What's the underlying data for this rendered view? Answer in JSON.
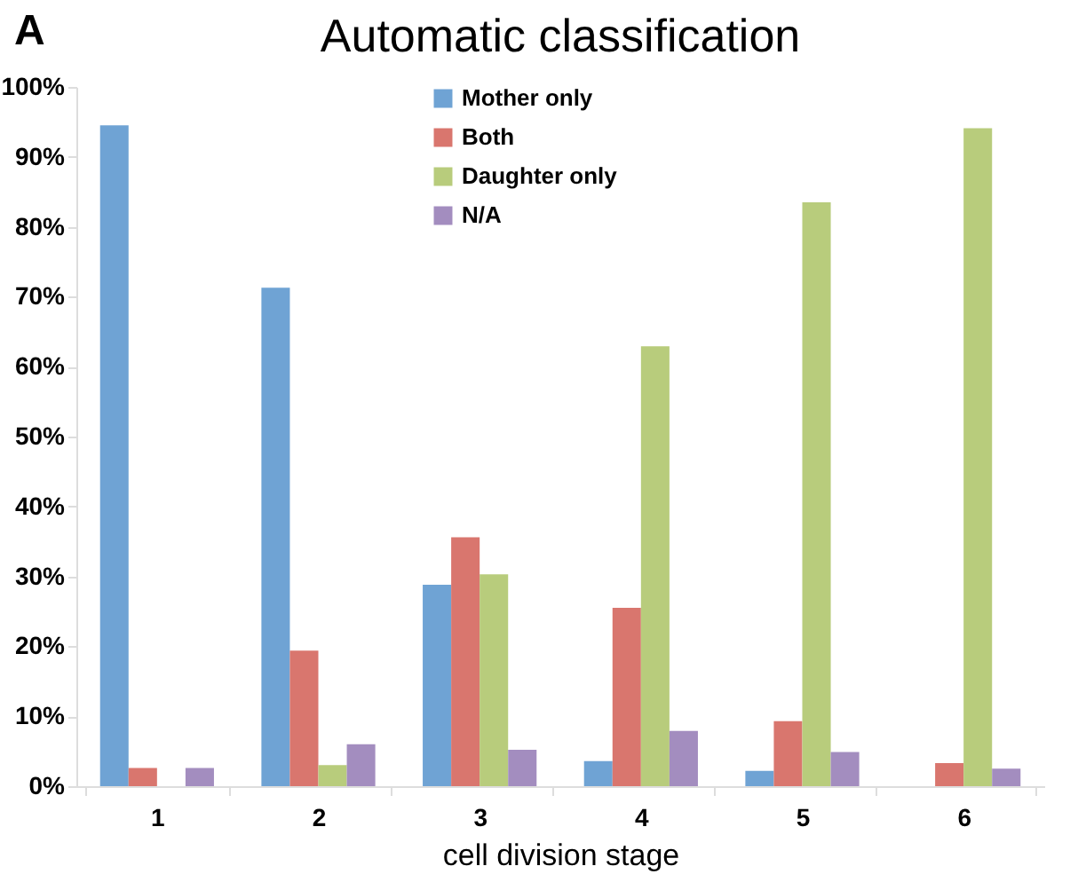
{
  "chart_data": {
    "type": "bar",
    "title": "Automatic classification",
    "xlabel": "cell division stage",
    "annotations": [
      "A"
    ],
    "categories": [
      "1",
      "2",
      "3",
      "4",
      "5",
      "6"
    ],
    "series": [
      {
        "name": "Mother only",
        "color": "#6fa3d4",
        "values": [
          94.5,
          71.3,
          28.8,
          3.6,
          2.2,
          0
        ]
      },
      {
        "name": "Both",
        "color": "#d9766e",
        "values": [
          2.6,
          19.4,
          35.6,
          25.5,
          9.3,
          3.3
        ]
      },
      {
        "name": "Daughter only",
        "color": "#b8cc7c",
        "values": [
          0,
          3.0,
          30.3,
          62.9,
          83.5,
          94.1
        ]
      },
      {
        "name": "N/A",
        "color": "#a38dbf",
        "values": [
          2.6,
          6.0,
          5.2,
          7.9,
          4.9,
          2.5
        ]
      }
    ],
    "ylim": [
      0,
      100
    ],
    "yticks": [
      {
        "value": 0,
        "label": "0%"
      },
      {
        "value": 10,
        "label": "10%"
      },
      {
        "value": 20,
        "label": "20%"
      },
      {
        "value": 30,
        "label": "30%"
      },
      {
        "value": 40,
        "label": "40%"
      },
      {
        "value": 50,
        "label": "50%"
      },
      {
        "value": 60,
        "label": "60%"
      },
      {
        "value": 70,
        "label": "70%"
      },
      {
        "value": 80,
        "label": "80%"
      },
      {
        "value": 90,
        "label": "90%"
      },
      {
        "value": 100,
        "label": "100%"
      }
    ],
    "grid": false,
    "legend": "top"
  }
}
